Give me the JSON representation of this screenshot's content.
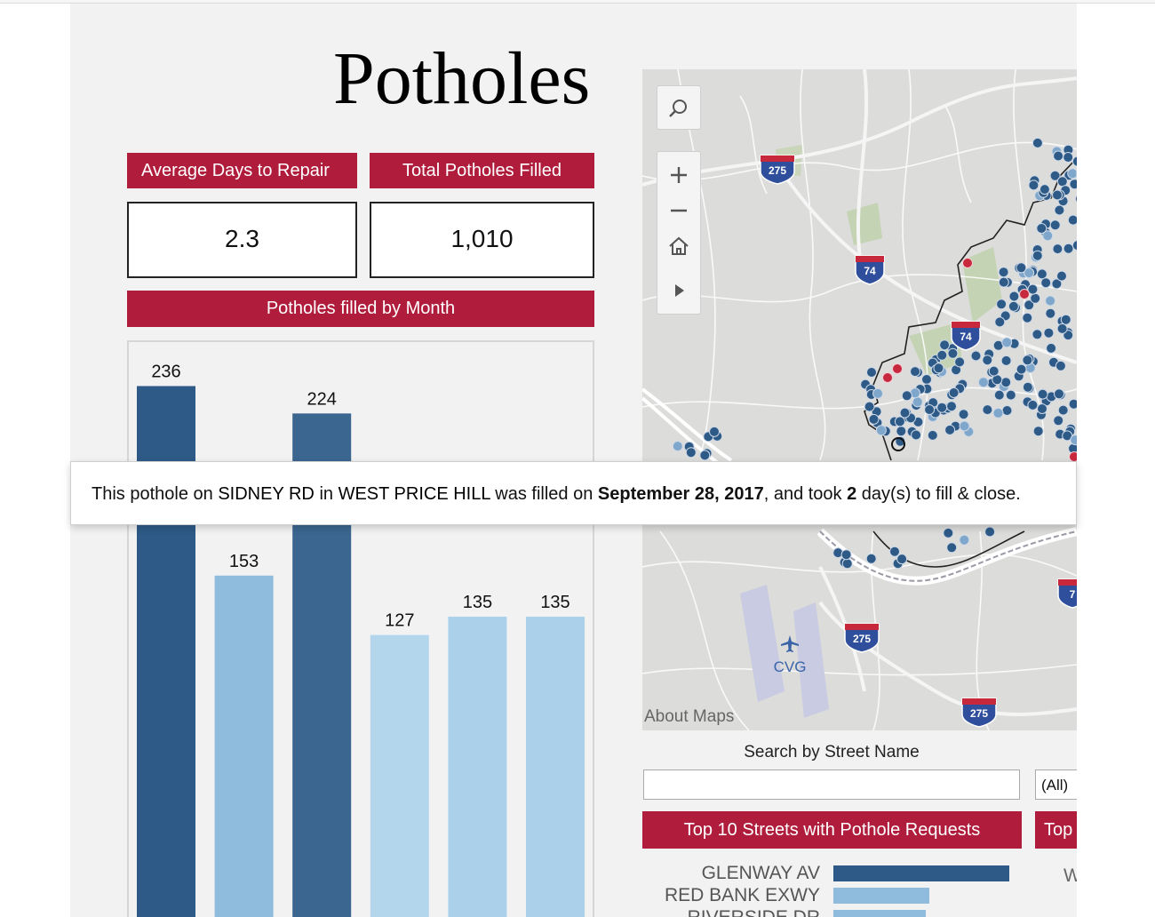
{
  "title": "Potholes",
  "kpis": {
    "avg_days": {
      "label": "Average Days to Repair",
      "value": "2.3"
    },
    "total_filled": {
      "label": "Total Potholes Filled",
      "value": "1,010"
    }
  },
  "monthly_header": "Potholes filled by Month",
  "chart_data": {
    "type": "bar",
    "title": "",
    "values": [
      236,
      153,
      224,
      127,
      135,
      135
    ],
    "value_labels": [
      "236",
      "153",
      "224",
      "127",
      "135",
      "135"
    ],
    "colors": [
      "#2e5a87",
      "#8fbbdd",
      "#3a6690",
      "#b4d6ec",
      "#aad0ea",
      "#aad0ea"
    ]
  },
  "map": {
    "about": "About Maps",
    "airport_label": "CVG",
    "shields": [
      "275",
      "74",
      "74",
      "275",
      "275",
      "7"
    ]
  },
  "search": {
    "label": "Search by Street Name",
    "placeholder": "",
    "filter_value": "(All)"
  },
  "top_streets": {
    "header": "Top 10 Streets with Pothole Requests",
    "header2": "Top",
    "items": [
      {
        "name": "GLENWAY AV",
        "color": "#2e5a87"
      },
      {
        "name": "RED BANK EXWY",
        "color": "#8fbbdd"
      },
      {
        "name": "RIVERSIDE DR",
        "color": "#8fbbdd"
      }
    ],
    "cut_letter": "W"
  },
  "tooltip": {
    "prefix": "This pothole on",
    "street": "SIDNEY RD",
    "in_word": "in",
    "neighborhood": "WEST PRICE HILL",
    "filled_on": "was filled on",
    "date": "September 28, 2017",
    "took": ", and took",
    "days": "2",
    "suffix": "day(s) to fill & close."
  }
}
